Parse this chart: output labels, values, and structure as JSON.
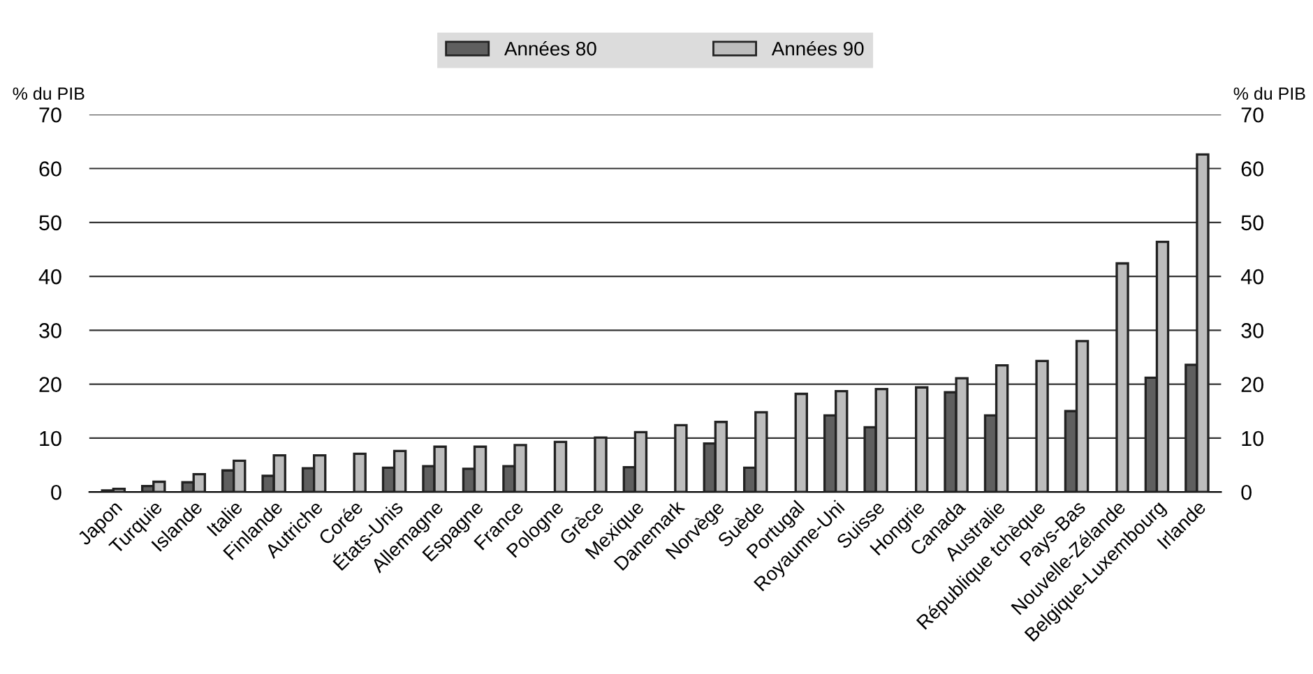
{
  "chart_data": {
    "type": "bar",
    "categories": [
      "Japon",
      "Turquie",
      "Islande",
      "Italie",
      "Finlande",
      "Autriche",
      "Corée",
      "États-Unis",
      "Allemagne",
      "Espagne",
      "France",
      "Pologne",
      "Grèce",
      "Mexique",
      "Danemark",
      "Norvège",
      "Suède",
      "Portugal",
      "Royaume-Uni",
      "Suisse",
      "Hongrie",
      "Canada",
      "Australie",
      "République tchèque",
      "Pays-Bas",
      "Nouvelle-Zélande",
      "Belgique-Luxembourg",
      "Irlande"
    ],
    "series": [
      {
        "name": "Années 80",
        "color": "#5f5f5f",
        "values": [
          0.3,
          1.1,
          1.8,
          4.0,
          3.0,
          4.4,
          null,
          4.5,
          4.8,
          4.3,
          4.8,
          null,
          null,
          4.6,
          null,
          9.0,
          4.5,
          null,
          14.2,
          12.0,
          null,
          18.5,
          14.2,
          null,
          15.0,
          null,
          21.2,
          23.6
        ]
      },
      {
        "name": "Années 90",
        "color": "#bdbdbd",
        "values": [
          0.6,
          1.9,
          3.3,
          5.8,
          6.8,
          6.8,
          7.1,
          7.6,
          8.4,
          8.4,
          8.7,
          9.3,
          10.1,
          11.1,
          12.4,
          13.0,
          14.8,
          18.2,
          18.7,
          19.1,
          19.4,
          21.1,
          23.5,
          24.3,
          28.0,
          42.4,
          46.4,
          62.6
        ]
      }
    ],
    "ylabel": "% du PIB",
    "y2label": "% du PIB",
    "ylim": [
      0,
      70
    ],
    "yticks": [
      0,
      10,
      20,
      30,
      40,
      50,
      60,
      70
    ],
    "y2lim": [
      0,
      70
    ],
    "y2ticks": [
      0,
      10,
      20,
      30,
      40,
      50,
      60,
      70
    ],
    "grid": "y",
    "legend": "top"
  }
}
